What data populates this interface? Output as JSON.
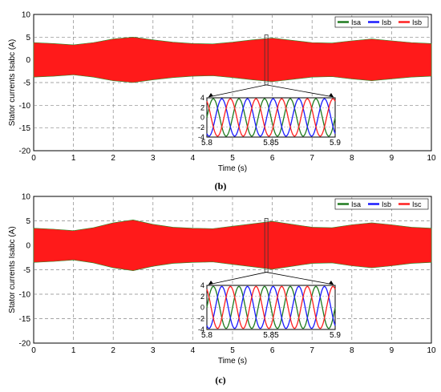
{
  "chart_data": [
    {
      "type": "line",
      "caption": "(b)",
      "xlabel": "Time (s)",
      "ylabel": "Stator currents Isabc (A)",
      "xlim": [
        0,
        10
      ],
      "ylim": [
        -20,
        10
      ],
      "xticks": [
        "0",
        "1",
        "2",
        "3",
        "4",
        "5",
        "6",
        "7",
        "8",
        "9",
        "10"
      ],
      "yticks": [
        "10",
        "5",
        "0",
        "-5",
        "-10",
        "-15",
        "-20"
      ],
      "grid": true,
      "legend_position": "top-right",
      "series": [
        {
          "name": "Isa",
          "color": "#1f7a1f"
        },
        {
          "name": "Isb",
          "color": "#1a1aff"
        },
        {
          "name": "Isb",
          "color": "#ff2020"
        }
      ],
      "envelope_x": [
        0,
        0.5,
        1,
        1.5,
        2,
        2.5,
        3,
        3.5,
        4,
        4.5,
        5,
        5.5,
        6,
        6.5,
        7,
        7.5,
        8,
        8.5,
        9,
        9.5,
        10
      ],
      "envelope_amplitude": [
        3.8,
        3.6,
        3.3,
        3.8,
        4.6,
        5.0,
        4.4,
        3.9,
        3.6,
        3.5,
        3.9,
        4.4,
        4.8,
        4.3,
        3.8,
        3.7,
        4.2,
        4.6,
        4.2,
        3.8,
        3.6
      ],
      "inset": {
        "xlim": [
          5.8,
          5.9
        ],
        "ylim": [
          -4,
          4
        ],
        "xticks": [
          "5.8",
          "5.85",
          "5.9"
        ],
        "yticks": [
          "4",
          "2",
          "0",
          "-2",
          "-4"
        ],
        "amplitude": 3.8,
        "cycles": 5
      }
    },
    {
      "type": "line",
      "caption": "(c)",
      "xlabel": "Time (s)",
      "ylabel": "Stator currents Isabc (A)",
      "xlim": [
        0,
        10
      ],
      "ylim": [
        -20,
        10
      ],
      "xticks": [
        "0",
        "1",
        "2",
        "3",
        "4",
        "5",
        "6",
        "7",
        "8",
        "9",
        "10"
      ],
      "yticks": [
        "10",
        "5",
        "0",
        "-5",
        "-10",
        "-15",
        "-20"
      ],
      "grid": true,
      "legend_position": "top-right",
      "series": [
        {
          "name": "Isa",
          "color": "#1f7a1f"
        },
        {
          "name": "Isb",
          "color": "#1a1aff"
        },
        {
          "name": "Isc",
          "color": "#ff2020"
        }
      ],
      "envelope_x": [
        0,
        0.5,
        1,
        1.5,
        2,
        2.5,
        3,
        3.5,
        4,
        4.5,
        5,
        5.5,
        6,
        6.5,
        7,
        7.5,
        8,
        8.5,
        9,
        9.5,
        10
      ],
      "envelope_amplitude": [
        3.5,
        3.3,
        3.0,
        3.6,
        4.6,
        5.2,
        4.3,
        3.7,
        3.5,
        3.4,
        3.9,
        4.4,
        4.9,
        4.3,
        3.7,
        3.6,
        4.2,
        4.6,
        4.2,
        3.7,
        3.5
      ],
      "inset": {
        "xlim": [
          5.8,
          5.9
        ],
        "ylim": [
          -4,
          4
        ],
        "xticks": [
          "5.8",
          "5.85",
          "5.9"
        ],
        "yticks": [
          "4",
          "2",
          "0",
          "-2",
          "-4"
        ],
        "amplitude": 3.8,
        "cycles": 5
      }
    }
  ]
}
